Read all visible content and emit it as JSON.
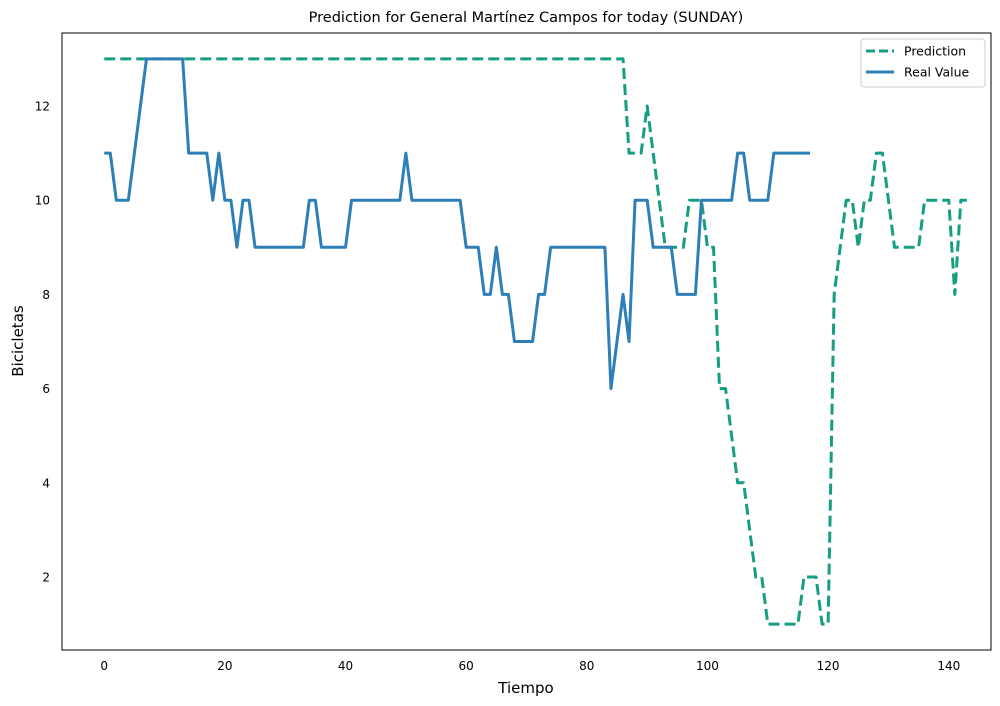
{
  "chart_data": {
    "type": "line",
    "title": "Prediction for General Martínez Campos  for today (SUNDAY)",
    "xlabel": "Tiempo",
    "ylabel": "Bicicletas",
    "xlim": [
      -7,
      147
    ],
    "ylim": [
      0.45,
      13.55
    ],
    "xticks": [
      0,
      20,
      40,
      60,
      80,
      100,
      120,
      140
    ],
    "yticks": [
      2,
      4,
      6,
      8,
      10,
      12
    ],
    "grid": false,
    "legend_position": "top-right",
    "series": [
      {
        "name": "Prediction",
        "style": "dashed",
        "color": "#169e83",
        "points": [
          [
            0,
            13
          ],
          [
            86,
            13
          ],
          [
            87,
            11
          ],
          [
            88,
            11
          ],
          [
            89,
            11
          ],
          [
            90,
            12
          ],
          [
            91,
            11
          ],
          [
            92,
            10
          ],
          [
            93,
            9
          ],
          [
            95,
            9
          ],
          [
            96,
            9
          ],
          [
            97,
            10
          ],
          [
            99,
            10
          ],
          [
            100,
            9
          ],
          [
            101,
            9
          ],
          [
            102,
            6
          ],
          [
            103,
            6
          ],
          [
            105,
            4
          ],
          [
            106,
            4
          ],
          [
            107,
            3
          ],
          [
            108,
            2
          ],
          [
            109,
            2
          ],
          [
            110,
            1
          ],
          [
            114,
            1
          ],
          [
            115,
            1
          ],
          [
            116,
            2
          ],
          [
            117,
            2
          ],
          [
            118,
            2
          ],
          [
            119,
            1
          ],
          [
            120,
            1
          ],
          [
            121,
            8
          ],
          [
            122,
            9
          ],
          [
            123,
            10
          ],
          [
            124,
            10
          ],
          [
            125,
            9
          ],
          [
            126,
            10
          ],
          [
            127,
            10
          ],
          [
            128,
            11
          ],
          [
            129,
            11
          ],
          [
            130,
            10
          ],
          [
            131,
            9
          ],
          [
            135,
            9
          ],
          [
            136,
            10
          ],
          [
            140,
            10
          ],
          [
            141,
            8
          ],
          [
            142,
            10
          ],
          [
            143,
            10
          ]
        ]
      },
      {
        "name": "Real Value",
        "style": "solid",
        "color": "#2e7fb8",
        "points": [
          [
            0,
            11
          ],
          [
            1,
            11
          ],
          [
            2,
            10
          ],
          [
            4,
            10
          ],
          [
            7,
            13
          ],
          [
            13,
            13
          ],
          [
            14,
            11
          ],
          [
            17,
            11
          ],
          [
            18,
            10
          ],
          [
            19,
            11
          ],
          [
            20,
            10
          ],
          [
            21,
            10
          ],
          [
            22,
            9
          ],
          [
            23,
            10
          ],
          [
            24,
            10
          ],
          [
            25,
            9
          ],
          [
            33,
            9
          ],
          [
            34,
            10
          ],
          [
            35,
            10
          ],
          [
            36,
            9
          ],
          [
            40,
            9
          ],
          [
            41,
            10
          ],
          [
            49,
            10
          ],
          [
            50,
            11
          ],
          [
            51,
            10
          ],
          [
            59,
            10
          ],
          [
            60,
            9
          ],
          [
            62,
            9
          ],
          [
            63,
            8
          ],
          [
            64,
            8
          ],
          [
            65,
            9
          ],
          [
            66,
            8
          ],
          [
            67,
            8
          ],
          [
            68,
            7
          ],
          [
            71,
            7
          ],
          [
            72,
            8
          ],
          [
            73,
            8
          ],
          [
            74,
            9
          ],
          [
            83,
            9
          ],
          [
            84,
            6
          ],
          [
            85,
            7
          ],
          [
            86,
            8
          ],
          [
            87,
            7
          ],
          [
            88,
            10
          ],
          [
            90,
            10
          ],
          [
            91,
            9
          ],
          [
            94,
            9
          ],
          [
            95,
            8
          ],
          [
            98,
            8
          ],
          [
            99,
            10
          ],
          [
            104,
            10
          ],
          [
            105,
            11
          ],
          [
            106,
            11
          ],
          [
            107,
            10
          ],
          [
            110,
            10
          ],
          [
            111,
            11
          ],
          [
            117,
            11
          ]
        ]
      }
    ]
  }
}
